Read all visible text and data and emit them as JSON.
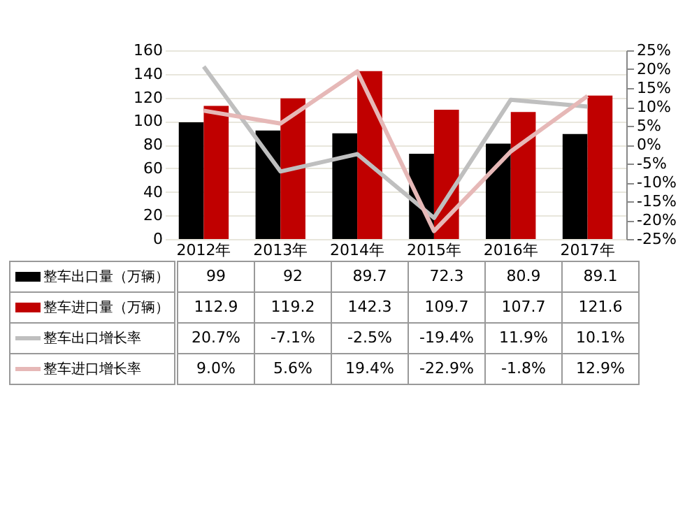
{
  "chart_data": {
    "type": "bar",
    "categories": [
      "2012年",
      "2013年",
      "2014年",
      "2015年",
      "2016年",
      "2017年"
    ],
    "series": [
      {
        "name": "整车出口量（万辆）",
        "color": "#000000",
        "values": [
          99,
          92,
          89.7,
          72.3,
          80.9,
          89.1
        ],
        "value_labels": [
          "99",
          "92",
          "89.7",
          "72.3",
          "80.9",
          "89.1"
        ]
      },
      {
        "name": "整车进口量（万辆）",
        "color": "#c00000",
        "values": [
          112.9,
          119.2,
          142.3,
          109.7,
          107.7,
          121.6
        ],
        "value_labels": [
          "112.9",
          "119.2",
          "142.3",
          "109.7",
          "107.7",
          "121.6"
        ]
      },
      {
        "name": "整车出口增长率",
        "type": "line",
        "axis": "y2",
        "color": "#bfbfbf",
        "values": [
          20.7,
          -7.1,
          -2.5,
          -19.4,
          11.9,
          10.1
        ],
        "value_labels": [
          "20.7%",
          "-7.1%",
          "-2.5%",
          "-19.4%",
          "11.9%",
          "10.1%"
        ]
      },
      {
        "name": "整车进口增长率",
        "type": "line",
        "axis": "y2",
        "color": "#e6b8b7",
        "values": [
          9.0,
          5.6,
          19.4,
          -22.9,
          -1.8,
          12.9
        ],
        "value_labels": [
          "9.0%",
          "5.6%",
          "19.4%",
          "-22.9%",
          "-1.8%",
          "12.9%"
        ]
      }
    ],
    "ylim": [
      0,
      160
    ],
    "yticks": [
      0,
      20,
      40,
      60,
      80,
      100,
      120,
      140,
      160
    ],
    "y2lim": [
      -25,
      25
    ],
    "y2ticks": [
      {
        "value": -25,
        "label": "-25%"
      },
      {
        "value": -20,
        "label": "-20%"
      },
      {
        "value": -15,
        "label": "-15%"
      },
      {
        "value": -10,
        "label": "-10%"
      },
      {
        "value": -5,
        "label": "-5%"
      },
      {
        "value": 0,
        "label": "0%"
      },
      {
        "value": 5,
        "label": "5%"
      },
      {
        "value": 10,
        "label": "10%"
      },
      {
        "value": 15,
        "label": "15%"
      },
      {
        "value": 20,
        "label": "20%"
      },
      {
        "value": 25,
        "label": "25%"
      }
    ],
    "grid": "y",
    "legend": "bottom",
    "marker": "none",
    "line_style": "solid"
  }
}
